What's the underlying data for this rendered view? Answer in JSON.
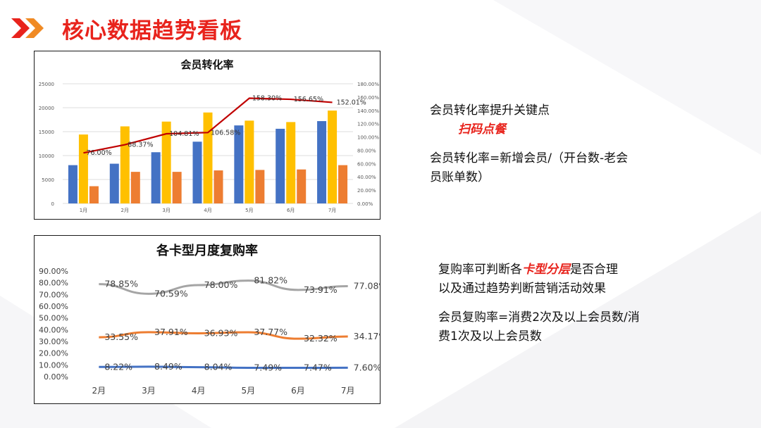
{
  "page_title": "核心数据趋势看板",
  "colors": {
    "accent": "#e8231c",
    "blue": "#4472c4",
    "gold": "#ffc000",
    "orange": "#ed7d31",
    "gray": "#a5a5a5",
    "darkred": "#c00000"
  },
  "chart_data": [
    {
      "type": "bar",
      "title": "会员转化率",
      "categories": [
        "1月",
        "2月",
        "3月",
        "4月",
        "5月",
        "6月",
        "7月"
      ],
      "ylim": [
        0,
        25000
      ],
      "y_ticks": [
        "0",
        "5000",
        "10000",
        "15000",
        "20000",
        "25000"
      ],
      "y2lim": [
        0,
        180
      ],
      "y2_ticks": [
        "0.00%",
        "20.00%",
        "40.00%",
        "60.00%",
        "80.00%",
        "100.00%",
        "120.00%",
        "140.00%",
        "160.00%",
        "180.00%"
      ],
      "series": [
        {
          "type": "bar",
          "values": [
            8000,
            8300,
            10700,
            12900,
            16300,
            15600,
            17200
          ]
        },
        {
          "type": "bar",
          "values": [
            14400,
            16100,
            17100,
            19000,
            17300,
            17000,
            19400
          ]
        },
        {
          "type": "bar",
          "values": [
            3600,
            6600,
            6600,
            6900,
            7000,
            7100,
            8000
          ]
        },
        {
          "type": "line",
          "axis": "right",
          "values": [
            76.0,
            88.37,
            104.81,
            106.58,
            158.3,
            156.65,
            152.01
          ],
          "labels": [
            "76.00%",
            "88.37%",
            "104.81%",
            "106.58%",
            "158.30%",
            "156.65%",
            "152.01%"
          ]
        }
      ]
    },
    {
      "type": "line",
      "title": "各卡型月度复购率",
      "categories": [
        "2月",
        "3月",
        "4月",
        "5月",
        "6月",
        "7月"
      ],
      "ylim": [
        0,
        90
      ],
      "y_ticks": [
        "0.00%",
        "10.00%",
        "20.00%",
        "30.00%",
        "40.00%",
        "50.00%",
        "60.00%",
        "70.00%",
        "80.00%",
        "90.00%"
      ],
      "series": [
        {
          "values": [
            78.85,
            70.59,
            78.0,
            81.82,
            73.91,
            77.08
          ],
          "labels": [
            "78.85%",
            "70.59%",
            "78.00%",
            "81.82%",
            "73.91%",
            "77.08%"
          ]
        },
        {
          "values": [
            33.55,
            37.91,
            36.93,
            37.77,
            32.32,
            34.17
          ],
          "labels": [
            "33.55%",
            "37.91%",
            "36.93%",
            "37.77%",
            "32.32%",
            "34.17%"
          ]
        },
        {
          "values": [
            8.22,
            8.49,
            8.04,
            7.49,
            7.47,
            7.6
          ],
          "labels": [
            "8.22%",
            "8.49%",
            "8.04%",
            "7.49%",
            "7.47%",
            "7.60%"
          ]
        }
      ]
    }
  ],
  "note1": {
    "line1": "会员转化率提升关键点",
    "highlight": "扫码点餐",
    "line3a": "会员转化率=新增会员/（开台数-老会",
    "line3b": "员账单数）"
  },
  "note2": {
    "l1_pre": "复购率可判断各",
    "l1_em": "卡型分层",
    "l1_post": "是否合理",
    "l2": "以及通过趋势判断营销活动效果",
    "l3a": "会员复购率=消费2次及以上会员数/消",
    "l3b": "费1次及以上会员数"
  }
}
